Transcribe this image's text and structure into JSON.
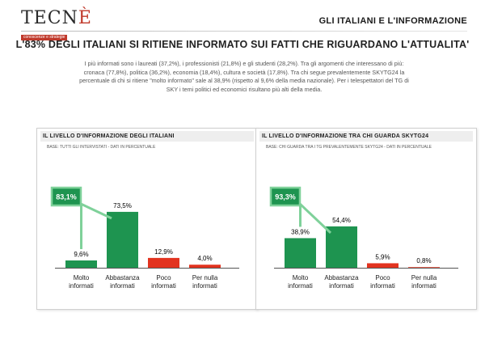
{
  "header": {
    "logo_text_main": "TECN",
    "logo_text_accent": "È",
    "logo_tagline": "conoscenze e strategie",
    "title": "GLI ITALIANI E L'INFORMAZIONE"
  },
  "main_title": "L'83% DEGLI ITALIANI SI RITIENE INFORMATO SUI FATTI CHE RIGUARDANO L'ATTUALITA'",
  "intro_text": "I più informati sono i laureati (37,2%), i professionisti (21,8%) e gli studenti (28,2%). Tra gli argomenti che interessano di più: cronaca (77,8%), politica (36,2%), economia (18,4%), cultura e società (17,8%). Tra chi segue prevalentemente SKYTG24 la percentuale di chi si ritiene \"molto informato\" sale al 38,9% (rispetto al 9,6% della media nazionale). Per i telespettatori del TG di SKY i temi politici ed economici risultano più alti della media.",
  "colors": {
    "green": "#1e9450",
    "red": "#e2331f",
    "callout_border": "#7fd19a"
  },
  "chart_data": [
    {
      "type": "bar",
      "title": "IL LIVELLO D'INFORMAZIONE DEGLI ITALIANI",
      "subtitle": "BASE: TUTTI GLI INTERVISTATI - DATI IN PERCENTUALE",
      "categories": [
        [
          "Molto",
          "informati"
        ],
        [
          "Abbastanza",
          "informati"
        ],
        [
          "Poco",
          "informati"
        ],
        [
          "Per nulla",
          "informati"
        ]
      ],
      "values": [
        9.6,
        73.5,
        12.9,
        4.0
      ],
      "value_labels": [
        "9,6%",
        "73,5%",
        "12,9%",
        "4,0%"
      ],
      "bar_colors": [
        "green",
        "green",
        "red",
        "red"
      ],
      "callout": {
        "label": "83,1%",
        "value": 83.1
      },
      "ylim": [
        0,
        100
      ]
    },
    {
      "type": "bar",
      "title": "IL LIVELLO D'INFORMAZIONE TRA CHI GUARDA SKYTG24",
      "subtitle": "BASE: CHI GUARDA TRA I TG PREVALENTEMENTE SKYTG24 - DATI IN PERCENTUALE",
      "categories": [
        [
          "Molto",
          "informati"
        ],
        [
          "Abbastanza",
          "informati"
        ],
        [
          "Poco",
          "informati"
        ],
        [
          "Per nulla",
          "informati"
        ]
      ],
      "values": [
        38.9,
        54.4,
        5.9,
        0.8
      ],
      "value_labels": [
        "38,9%",
        "54,4%",
        "5,9%",
        "0,8%"
      ],
      "bar_colors": [
        "green",
        "green",
        "red",
        "red"
      ],
      "callout": {
        "label": "93,3%",
        "value": 93.3
      },
      "ylim": [
        0,
        100
      ]
    }
  ]
}
